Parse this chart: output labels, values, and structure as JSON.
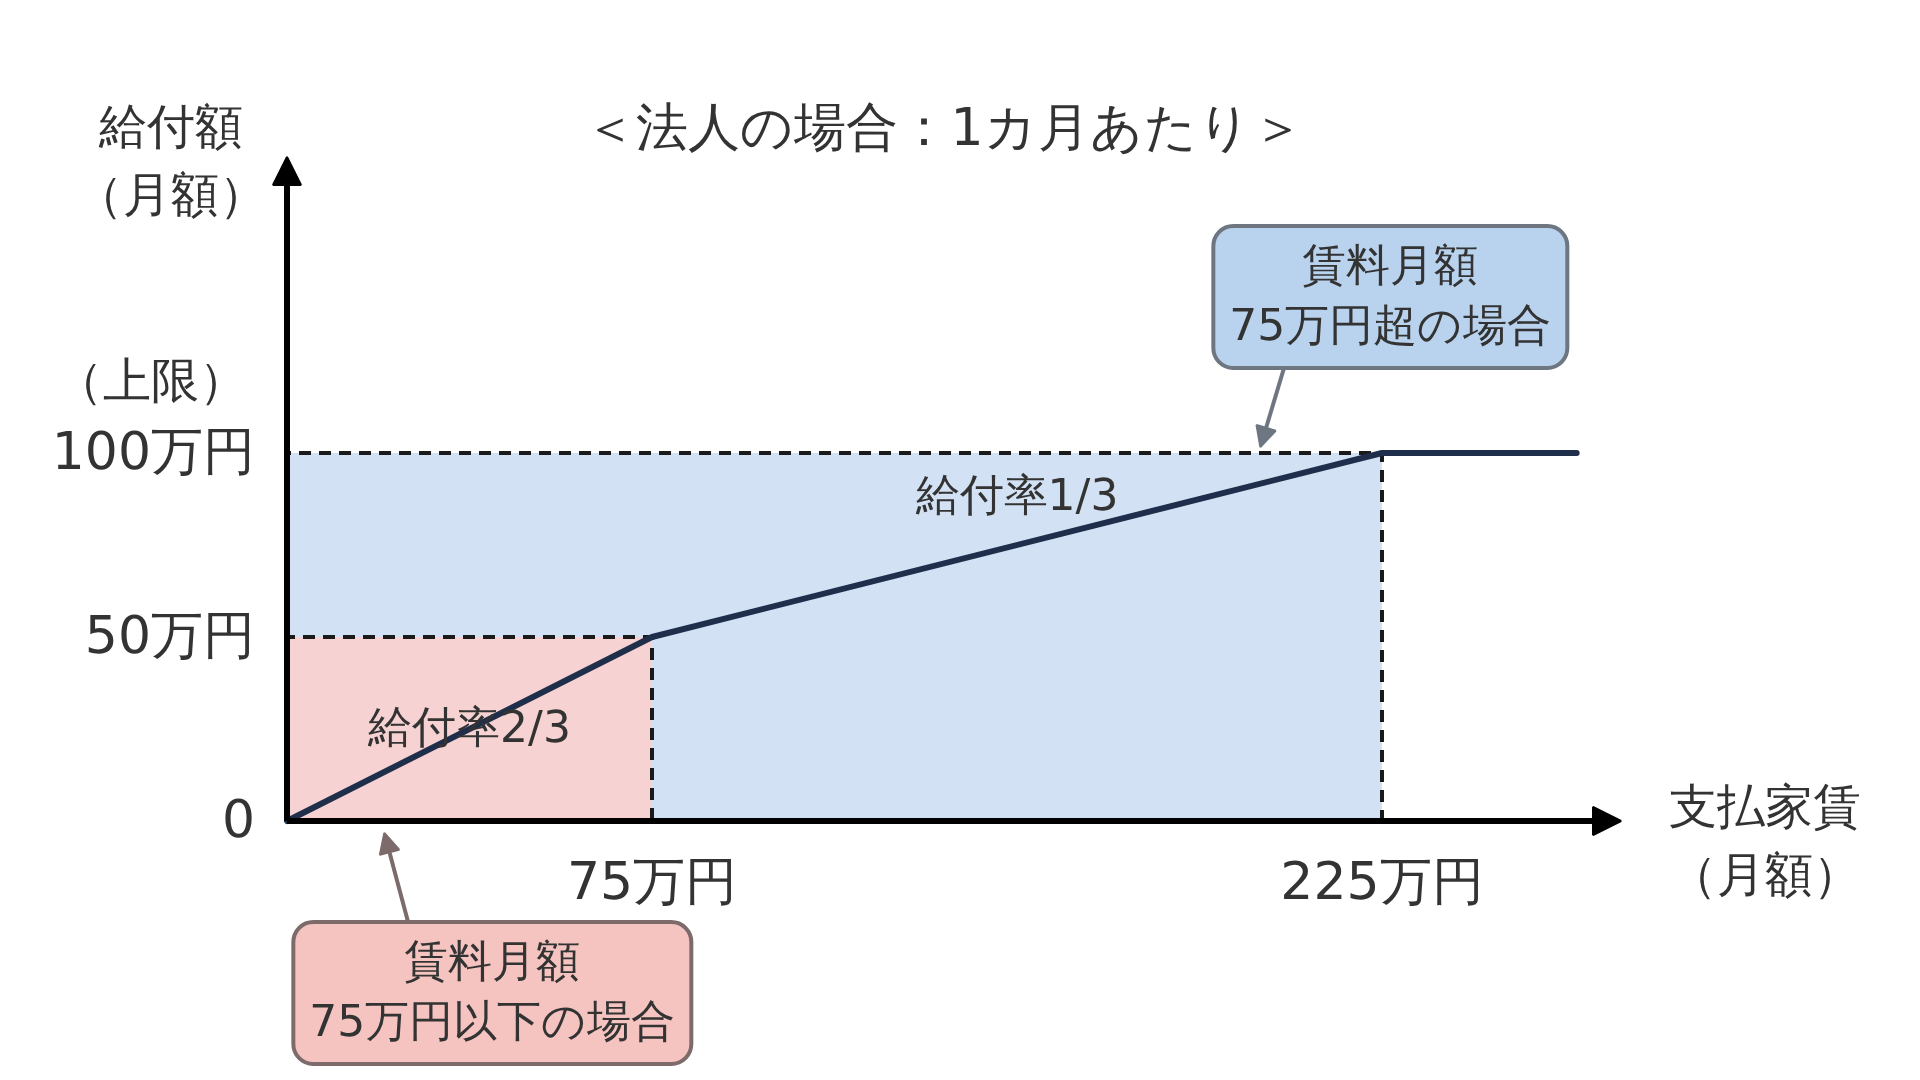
{
  "chart_data": {
    "type": "line",
    "title": "＜法人の場合：1カ月あたり＞",
    "xlabel": "支払家賃（月額）",
    "ylabel": "給付額（月額）",
    "xlim": [
      0,
      270
    ],
    "xticks": [
      {
        "value": 75,
        "label": "75万円"
      },
      {
        "value": 225,
        "label": "225万円"
      }
    ],
    "ylim": [
      0,
      175
    ],
    "yticks": [
      0,
      {
        "value": 50,
        "label": "50万円"
      },
      {
        "value": 100,
        "label": "100万円"
      }
    ],
    "grid": false,
    "series": [
      {
        "type": "area",
        "line_style": "dashed",
        "color": "#d3e1f5",
        "x": [
          0,
          225
        ],
        "values": [
          100,
          100
        ]
      },
      {
        "type": "area",
        "line_style": "dashed",
        "color": "#f6d2d2",
        "x": [
          0,
          75
        ],
        "values": [
          50,
          50
        ]
      },
      {
        "color": "#1f2e4a",
        "x": [
          0,
          75,
          225,
          265
        ],
        "values": [
          0,
          50,
          100,
          100
        ]
      }
    ],
    "annotations": [
      {
        "text": "（上限）",
        "x": 0,
        "y": 100
      },
      {
        "text": "給付率1/3",
        "x": 150,
        "y": 75
      },
      "給付率2/3",
      {
        "text": "賃料月額\n75万円超の場合",
        "x": 200,
        "y": 100
      },
      {
        "text": "賃料月額\n75万円以下の場合",
        "x": 20,
        "y": 0
      }
    ]
  }
}
